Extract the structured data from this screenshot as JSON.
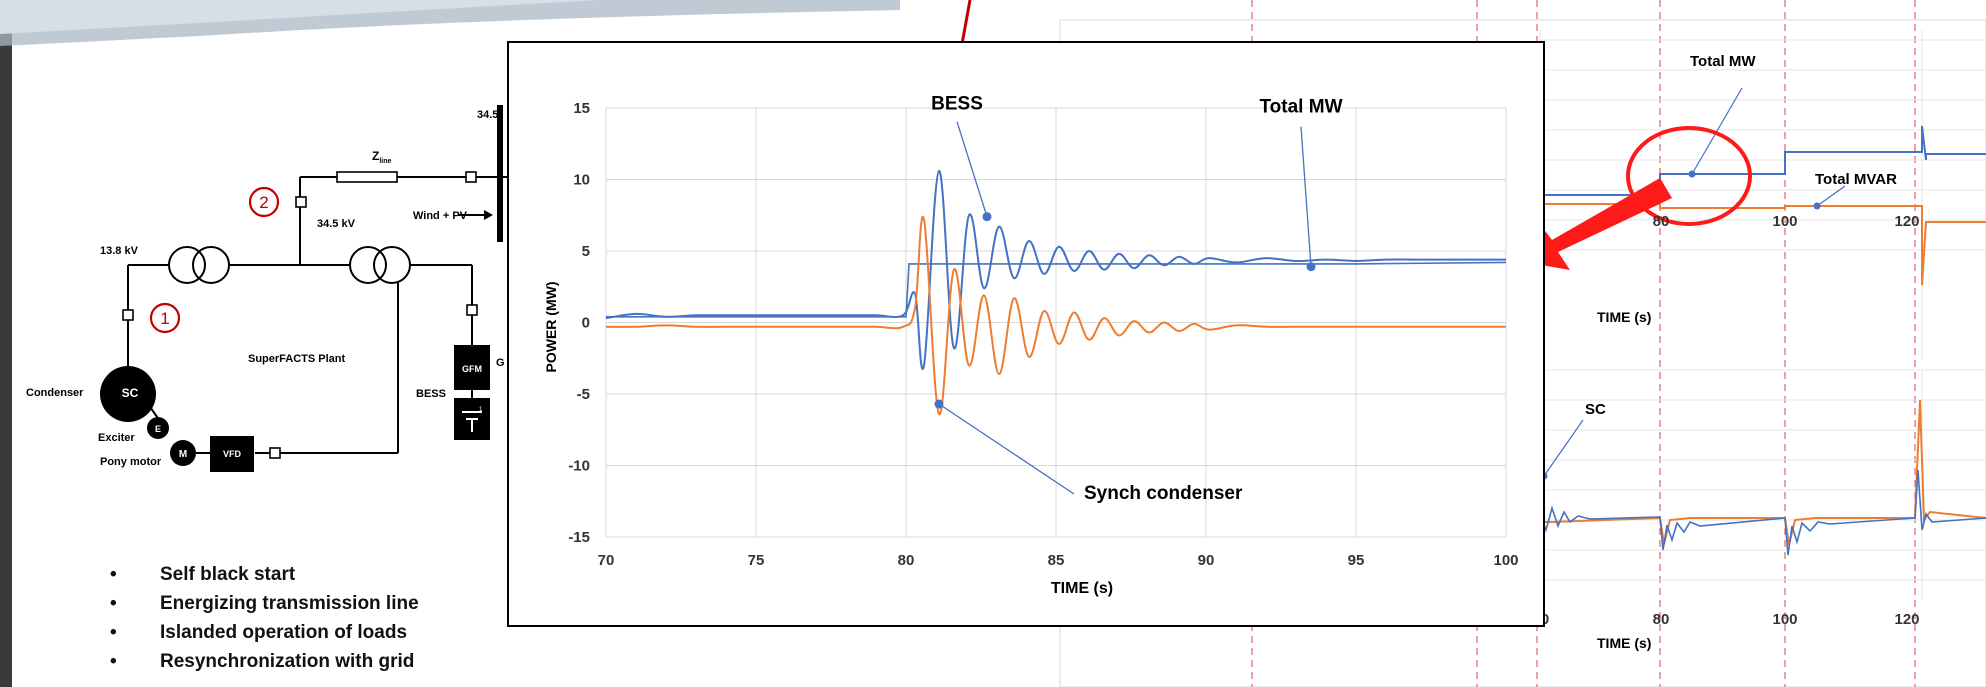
{
  "diagram": {
    "v_bus_high": "34.5",
    "z_line_main": "Z",
    "z_line_sub": "line",
    "marker_2": "2",
    "marker_1": "1",
    "v_34_5": "34.5 kV",
    "wind_pv": "Wind + PV",
    "v_13_8": "13.8 kV",
    "plant_label": "SuperFACTS Plant",
    "condenser": "Condenser",
    "sc": "SC",
    "exciter": "Exciter",
    "exciter_e": "E",
    "pony_motor": "Pony motor",
    "pony_m": "M",
    "vfd": "VFD",
    "bess": "BESS",
    "gfm": "GFM",
    "gfm_cut": "G",
    "battery_mark": "1"
  },
  "bullets": [
    "Self black start",
    "Energizing transmission line",
    "Islanded operation of loads",
    "Resynchronization with grid"
  ],
  "bg_charts": {
    "top_total_mw": "Total MW",
    "top_total_mvar": "Total MVAR",
    "top_xticks": [
      "80",
      "100",
      "120"
    ],
    "top_xlabel": "TIME (s)",
    "bottom_sc": "SC",
    "bottom_xticks": [
      "0",
      "80",
      "100",
      "120"
    ],
    "bottom_xlabel": "TIME (s)"
  },
  "colors": {
    "blue": "#4472c4",
    "orange": "#ed7d31",
    "marker_red": "#c00000",
    "dashed_red": "#e07070"
  },
  "chart_data": {
    "type": "line",
    "title": "",
    "xlabel": "TIME (s)",
    "ylabel": "POWER (MW)",
    "xlim": [
      70,
      100
    ],
    "ylim": [
      -15,
      15
    ],
    "xticks": [
      70,
      75,
      80,
      85,
      90,
      95,
      100
    ],
    "yticks": [
      15,
      10,
      5,
      0,
      -5,
      -10,
      -15
    ],
    "grid": true,
    "legend": "none",
    "annotations": [
      {
        "text": "BESS",
        "at": [
          82.7,
          7.4
        ]
      },
      {
        "text": "Total MW",
        "at": [
          93.5,
          3.9
        ]
      },
      {
        "text": "Synch condenser",
        "at": [
          81.1,
          -5.7
        ]
      }
    ],
    "series": [
      {
        "name": "BESS",
        "color": "#4472c4",
        "x": [
          70,
          71,
          72,
          73,
          74,
          75,
          76,
          77,
          78,
          79,
          79.9,
          80.3,
          80.6,
          81.1,
          81.6,
          82.1,
          82.6,
          83.1,
          83.6,
          84.1,
          84.6,
          85.1,
          85.6,
          86.1,
          86.6,
          87.1,
          87.6,
          88.1,
          88.6,
          89.1,
          89.6,
          90.1,
          91,
          92,
          93,
          94,
          95,
          96,
          97,
          98,
          99,
          100
        ],
        "y": [
          0.3,
          0.6,
          0.4,
          0.5,
          0.5,
          0.5,
          0.5,
          0.5,
          0.5,
          0.5,
          0.5,
          2.0,
          -3.0,
          10.6,
          -1.8,
          7.5,
          2.4,
          6.7,
          3.1,
          5.7,
          3.4,
          5.3,
          3.6,
          5.0,
          3.7,
          4.8,
          3.8,
          4.7,
          4.0,
          4.6,
          4.1,
          4.5,
          4.2,
          4.5,
          4.3,
          4.4,
          4.3,
          4.4,
          4.4,
          4.4,
          4.4,
          4.4
        ]
      },
      {
        "name": "Total MW",
        "color": "#4472c4",
        "x": [
          70,
          75,
          80,
          80.1,
          85,
          90,
          95,
          100
        ],
        "y": [
          0.4,
          0.4,
          0.4,
          4.1,
          4.1,
          4.1,
          4.1,
          4.2
        ]
      },
      {
        "name": "Synch condenser",
        "color": "#ed7d31",
        "x": [
          70,
          71,
          72,
          73,
          74,
          75,
          76,
          77,
          78,
          79,
          79.9,
          80.3,
          80.6,
          81.1,
          81.6,
          82.1,
          82.6,
          83.1,
          83.6,
          84.1,
          84.6,
          85.1,
          85.6,
          86.1,
          86.6,
          87.1,
          87.6,
          88.1,
          88.6,
          89.1,
          89.6,
          90.1,
          91,
          92,
          93,
          94,
          95,
          96,
          97,
          98,
          99,
          100
        ],
        "y": [
          -0.3,
          -0.3,
          -0.2,
          -0.3,
          -0.3,
          -0.3,
          -0.3,
          -0.3,
          -0.3,
          -0.3,
          -0.3,
          1.0,
          7.2,
          -6.4,
          3.7,
          -3.0,
          1.9,
          -3.6,
          1.7,
          -2.4,
          0.8,
          -1.5,
          0.7,
          -1.2,
          0.3,
          -0.9,
          0.1,
          -0.7,
          0.0,
          -0.6,
          -0.1,
          -0.5,
          -0.2,
          -0.3,
          -0.3,
          -0.3,
          -0.3,
          -0.3,
          -0.3,
          -0.3,
          -0.3,
          -0.3
        ]
      }
    ]
  }
}
